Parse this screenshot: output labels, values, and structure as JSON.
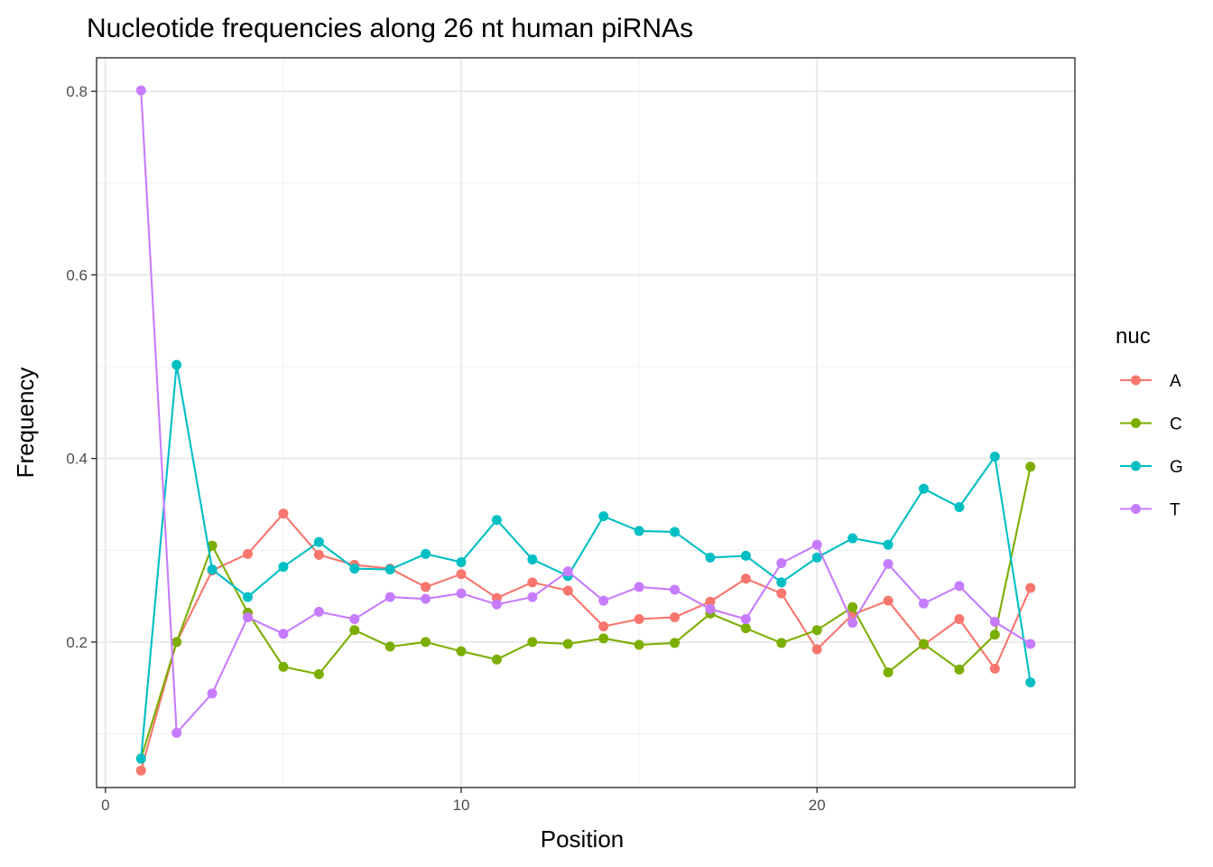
{
  "chart_data": {
    "type": "line",
    "title": "Nucleotide frequencies along 26 nt human piRNAs",
    "xlabel": "Position",
    "ylabel": "Frequency",
    "xlim": [
      -0.25,
      27.25
    ],
    "ylim": [
      0.0415,
      0.8365
    ],
    "x_ticks": [
      0,
      10,
      20
    ],
    "x_tick_labels": [
      "0",
      "10",
      "20"
    ],
    "y_ticks": [
      0.2,
      0.4,
      0.6,
      0.8
    ],
    "y_tick_labels": [
      "0.2",
      "0.4",
      "0.6",
      "0.8"
    ],
    "grid": true,
    "legend": {
      "title": "nuc",
      "position": "right"
    },
    "x": [
      1,
      2,
      3,
      4,
      5,
      6,
      7,
      8,
      9,
      10,
      11,
      12,
      13,
      14,
      15,
      16,
      17,
      18,
      19,
      20,
      21,
      22,
      23,
      24,
      25,
      26
    ],
    "series": [
      {
        "name": "A",
        "color": "#F8766D",
        "values": [
          0.06,
          0.2,
          0.278,
          0.296,
          0.34,
          0.295,
          0.284,
          0.28,
          0.26,
          0.274,
          0.248,
          0.265,
          0.256,
          0.217,
          0.225,
          0.227,
          0.244,
          0.269,
          0.253,
          0.192,
          0.23,
          0.245,
          0.197,
          0.225,
          0.171,
          0.259
        ]
      },
      {
        "name": "C",
        "color": "#7CAE00",
        "values": [
          0.073,
          0.2,
          0.305,
          0.232,
          0.173,
          0.165,
          0.213,
          0.195,
          0.2,
          0.19,
          0.181,
          0.2,
          0.198,
          0.204,
          0.197,
          0.199,
          0.231,
          0.215,
          0.199,
          0.213,
          0.238,
          0.167,
          0.198,
          0.17,
          0.208,
          0.391
        ]
      },
      {
        "name": "G",
        "color": "#00BFC4",
        "values": [
          0.073,
          0.502,
          0.279,
          0.249,
          0.282,
          0.309,
          0.28,
          0.279,
          0.296,
          0.287,
          0.333,
          0.29,
          0.272,
          0.337,
          0.321,
          0.32,
          0.292,
          0.294,
          0.265,
          0.292,
          0.313,
          0.306,
          0.367,
          0.347,
          0.402,
          0.156
        ]
      },
      {
        "name": "T",
        "color": "#C77CFF",
        "values": [
          0.801,
          0.101,
          0.144,
          0.227,
          0.209,
          0.233,
          0.225,
          0.249,
          0.247,
          0.253,
          0.241,
          0.249,
          0.277,
          0.245,
          0.26,
          0.257,
          0.236,
          0.225,
          0.286,
          0.306,
          0.221,
          0.285,
          0.242,
          0.261,
          0.222,
          0.198
        ]
      }
    ]
  }
}
